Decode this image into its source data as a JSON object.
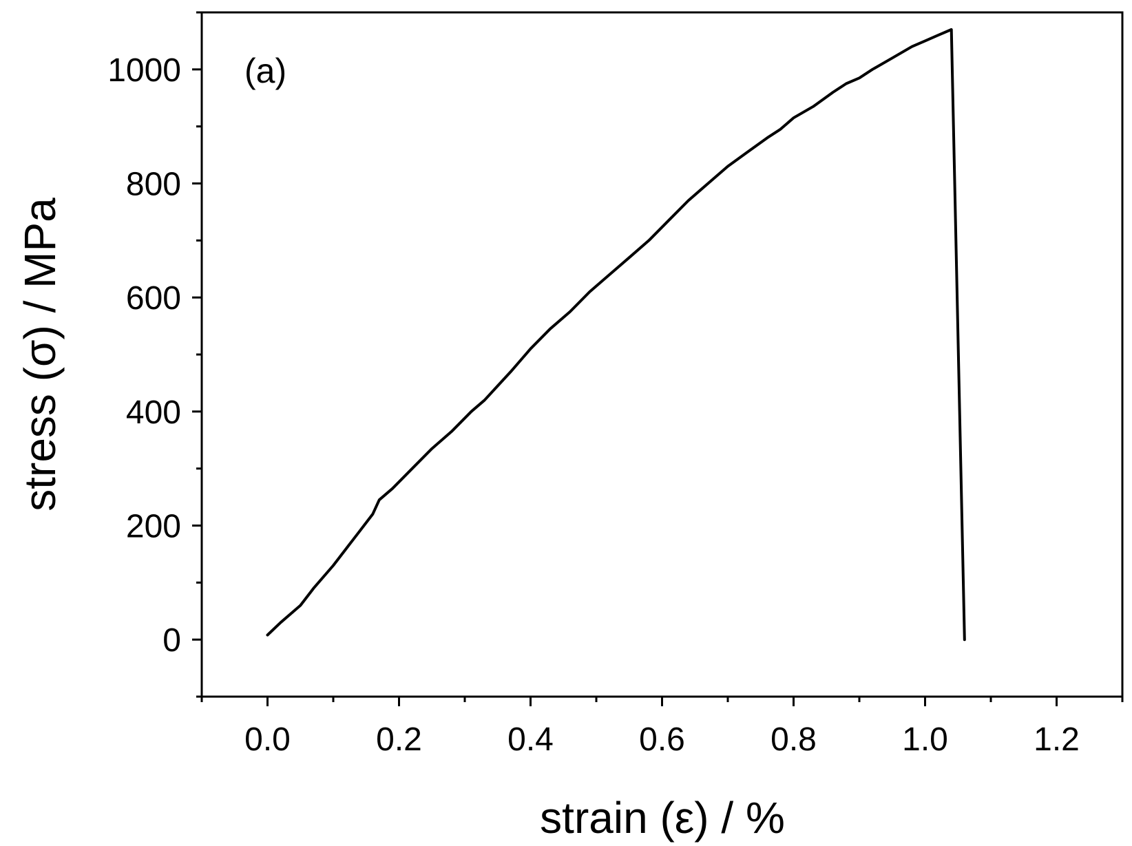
{
  "chart_data": {
    "type": "line",
    "panel_label": "(a)",
    "title": "",
    "xlabel": "strain (ε) / %",
    "ylabel": "stress (σ) / MPa",
    "xlim": [
      -0.1,
      1.3
    ],
    "ylim": [
      -100,
      1100
    ],
    "x_ticks": [
      0.0,
      0.2,
      0.4,
      0.6,
      0.8,
      1.0,
      1.2
    ],
    "x_tick_labels": [
      "0.0",
      "0.2",
      "0.4",
      "0.6",
      "0.8",
      "1.0",
      "1.2"
    ],
    "x_minor_ticks": [
      -0.1,
      0.1,
      0.3,
      0.5,
      0.7,
      0.9,
      1.1,
      1.3
    ],
    "y_ticks": [
      0,
      200,
      400,
      600,
      800,
      1000
    ],
    "y_tick_labels": [
      "0",
      "200",
      "400",
      "600",
      "800",
      "1000"
    ],
    "y_minor_ticks": [
      -100,
      100,
      300,
      500,
      700,
      900,
      1100
    ],
    "grid": false,
    "legend": "none",
    "line_color": "#000000",
    "series": [
      {
        "x": [
          0.0,
          0.02,
          0.05,
          0.07,
          0.1,
          0.12,
          0.14,
          0.16,
          0.17,
          0.19,
          0.22,
          0.25,
          0.28,
          0.31,
          0.33,
          0.35,
          0.37,
          0.4,
          0.43,
          0.46,
          0.49,
          0.52,
          0.55,
          0.58,
          0.61,
          0.64,
          0.67,
          0.7,
          0.73,
          0.76,
          0.78,
          0.8,
          0.83,
          0.86,
          0.88,
          0.9,
          0.92,
          0.95,
          0.98,
          1.0,
          1.02,
          1.04,
          1.06
        ],
        "y": [
          8,
          30,
          60,
          90,
          130,
          160,
          190,
          220,
          245,
          265,
          300,
          335,
          365,
          400,
          420,
          445,
          470,
          510,
          545,
          575,
          610,
          640,
          670,
          700,
          735,
          770,
          800,
          830,
          855,
          880,
          895,
          915,
          935,
          960,
          975,
          985,
          1000,
          1020,
          1040,
          1050,
          1060,
          1070,
          0
        ]
      }
    ]
  }
}
